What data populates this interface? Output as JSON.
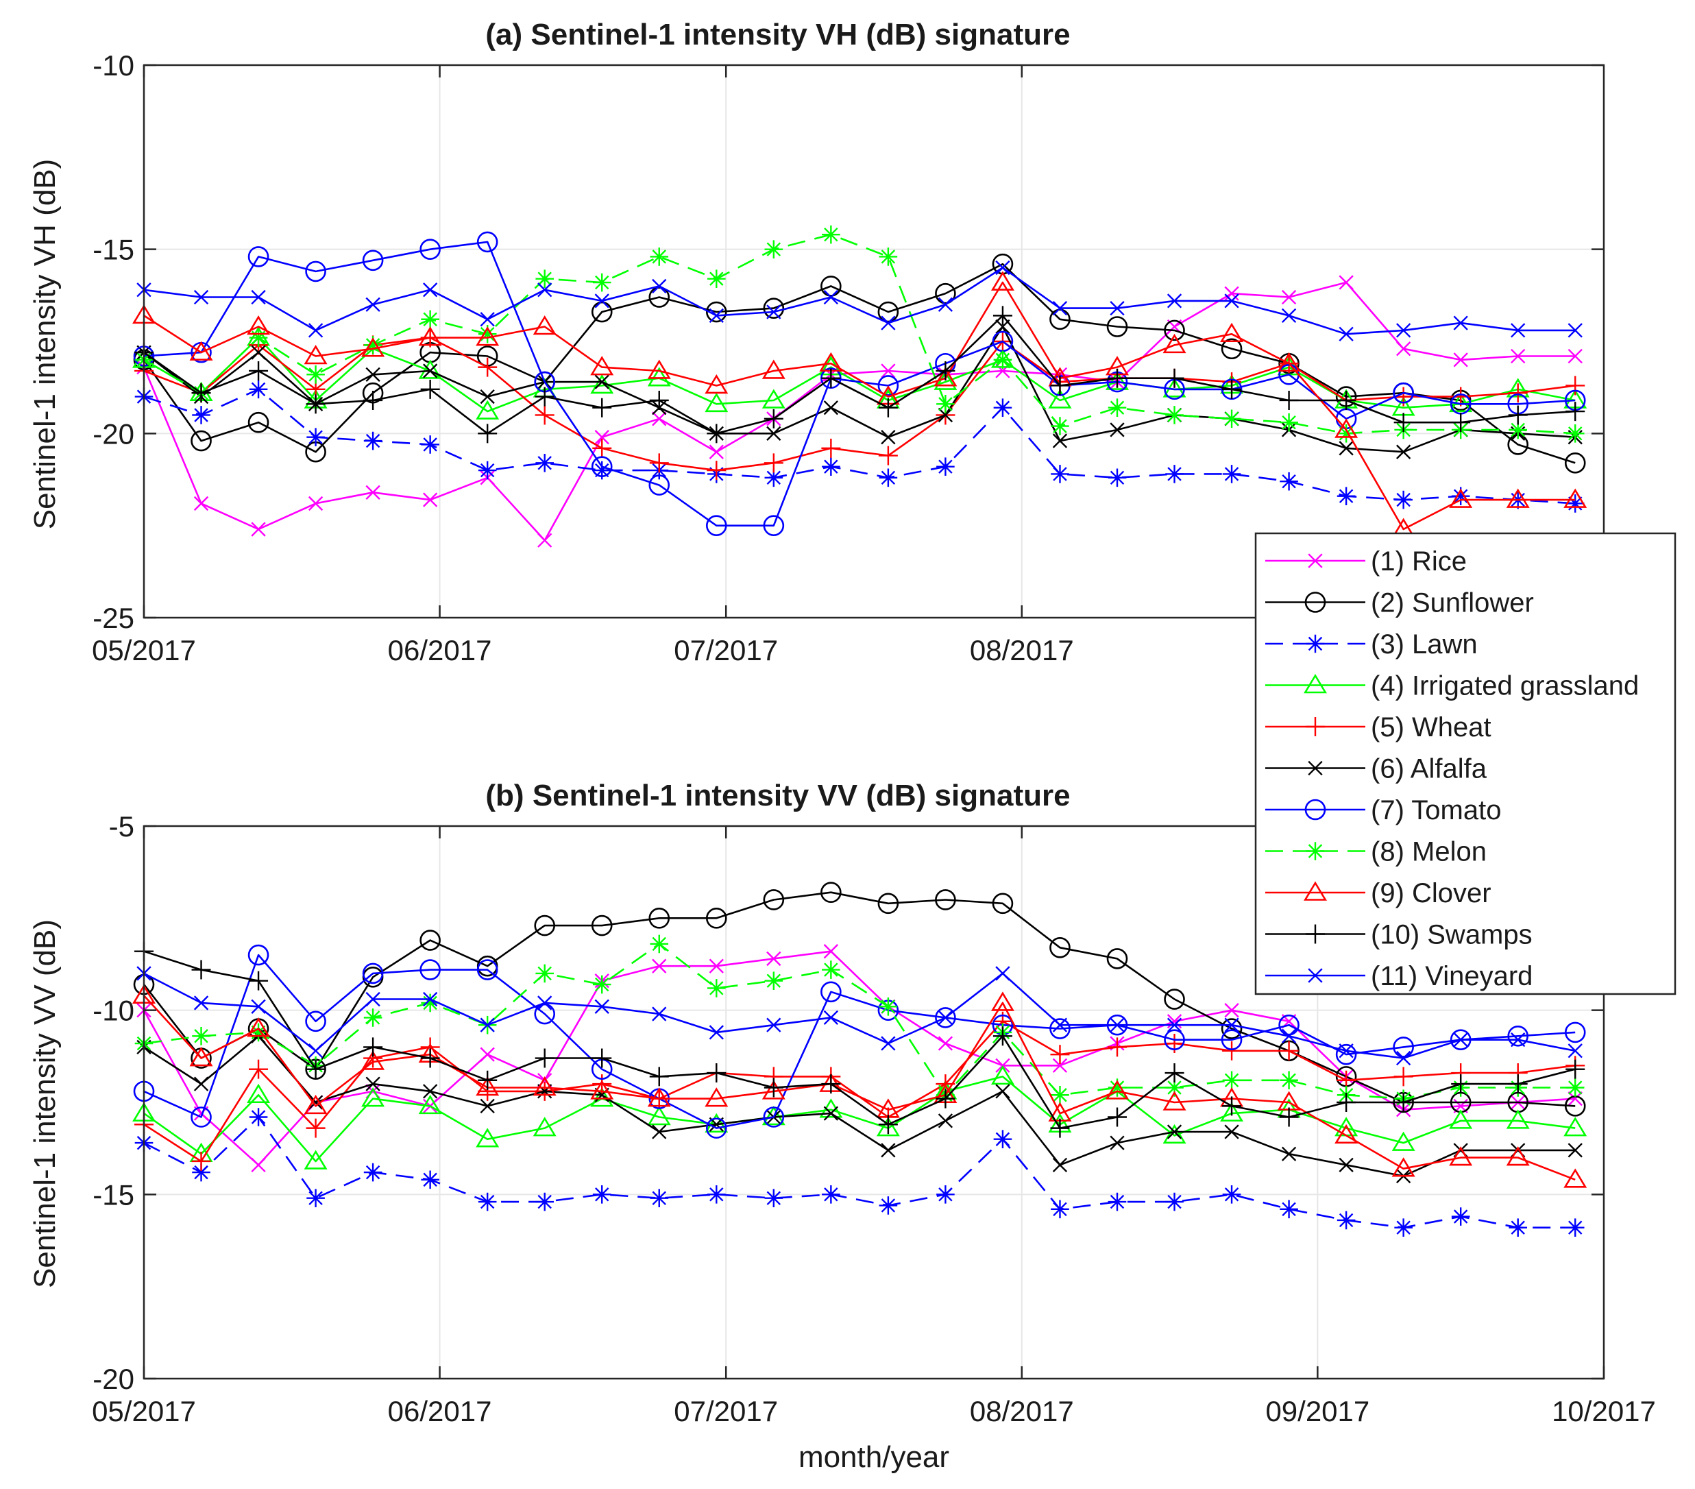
{
  "chart_data": [
    {
      "type": "line",
      "title": "(a) Sentinel-1 intensity VH (dB) signature",
      "xlabel": "",
      "ylabel": "Sentinel-1 intensity VH (dB)",
      "ylim": [
        -25,
        -10
      ],
      "yticks": [
        "-25",
        "-20",
        "-15",
        "-10"
      ],
      "xlim": [
        0,
        153
      ],
      "xticks": [
        {
          "value": 0,
          "label": "05/2017"
        },
        {
          "value": 31,
          "label": "06/2017"
        },
        {
          "value": 61,
          "label": "07/2017"
        },
        {
          "value": 92,
          "label": "08/2017"
        }
      ],
      "x": [
        0,
        6,
        12,
        18,
        24,
        30,
        36,
        42,
        48,
        54,
        60,
        66,
        72,
        78,
        84,
        90,
        96,
        102,
        108,
        114,
        120,
        126,
        132,
        138,
        144,
        150
      ],
      "series": [
        {
          "name": "(1) Rice",
          "values": [
            -18.2,
            -21.9,
            -22.6,
            -21.9,
            -21.6,
            -21.8,
            -21.2,
            -22.9,
            -20.1,
            -19.6,
            -20.5,
            -19.6,
            -18.4,
            -18.3,
            -18.4,
            -18.3,
            -18.4,
            -18.6,
            -17.1,
            -16.2,
            -16.3,
            -15.9,
            -17.7,
            -18.0,
            -17.9,
            -17.9
          ]
        },
        {
          "name": "(2) Sunflower",
          "values": [
            -18.0,
            -20.2,
            -19.7,
            -20.5,
            -18.9,
            -17.8,
            -17.9,
            -18.6,
            -16.7,
            -16.3,
            -16.7,
            -16.6,
            -16.0,
            -16.7,
            -16.2,
            -15.4,
            -16.9,
            -17.1,
            -17.2,
            -17.7,
            -18.1,
            -19.0,
            -18.9,
            -19.1,
            -20.3,
            -20.8
          ]
        },
        {
          "name": "(3) Lawn",
          "values": [
            -19.0,
            -19.5,
            -18.8,
            -20.1,
            -20.2,
            -20.3,
            -21.0,
            -20.8,
            -21.0,
            -21.0,
            -21.1,
            -21.2,
            -20.9,
            -21.2,
            -20.9,
            -19.3,
            -21.1,
            -21.2,
            -21.1,
            -21.1,
            -21.3,
            -21.7,
            -21.8,
            -21.7,
            -21.8,
            -21.9
          ]
        },
        {
          "name": "(4) Irrigated grassland",
          "values": [
            -18.0,
            -18.9,
            -17.4,
            -19.1,
            -17.7,
            -18.3,
            -19.4,
            -18.8,
            -18.7,
            -18.5,
            -19.2,
            -19.1,
            -18.2,
            -19.1,
            -18.6,
            -18.0,
            -19.1,
            -18.6,
            -18.8,
            -18.7,
            -18.2,
            -19.1,
            -19.3,
            -19.2,
            -18.8,
            -19.1
          ]
        },
        {
          "name": "(5) Wheat",
          "values": [
            -18.3,
            -18.9,
            -17.6,
            -18.8,
            -17.6,
            -17.4,
            -18.2,
            -19.5,
            -20.4,
            -20.8,
            -21.0,
            -20.8,
            -20.4,
            -20.6,
            -19.5,
            -17.5,
            -18.6,
            -18.5,
            -18.5,
            -18.6,
            -18.1,
            -19.1,
            -19.0,
            -19.0,
            -18.9,
            -18.7
          ]
        },
        {
          "name": "(6) Alfalfa",
          "values": [
            -17.8,
            -19.0,
            -17.8,
            -19.2,
            -18.4,
            -18.3,
            -19.0,
            -18.6,
            -18.6,
            -19.3,
            -20.0,
            -20.0,
            -19.3,
            -20.1,
            -19.5,
            -17.1,
            -20.2,
            -19.9,
            -19.5,
            -19.6,
            -19.9,
            -20.4,
            -20.5,
            -19.9,
            -20.0,
            -20.1
          ]
        },
        {
          "name": "(7) Tomato",
          "values": [
            -17.9,
            -17.8,
            -15.2,
            -15.6,
            -15.3,
            -15.0,
            -14.8,
            -18.6,
            -20.9,
            -21.4,
            -22.5,
            -22.5,
            -18.5,
            -18.7,
            -18.1,
            -17.5,
            -18.7,
            -18.6,
            -18.8,
            -18.8,
            -18.4,
            -19.6,
            -18.9,
            -19.2,
            -19.2,
            -19.1
          ]
        },
        {
          "name": "(8) Melon",
          "values": [
            -18.0,
            -18.9,
            -17.4,
            -18.4,
            -17.6,
            -16.9,
            -17.3,
            -15.8,
            -15.9,
            -15.2,
            -15.8,
            -15.0,
            -14.6,
            -15.2,
            -19.2,
            -18.0,
            -19.8,
            -19.3,
            -19.5,
            -19.6,
            -19.7,
            -20.0,
            -19.9,
            -19.9,
            -19.9,
            -20.0
          ]
        },
        {
          "name": "(9) Clover",
          "values": [
            -16.8,
            -17.8,
            -17.1,
            -17.9,
            -17.7,
            -17.4,
            -17.4,
            -17.1,
            -18.2,
            -18.3,
            -18.7,
            -18.3,
            -18.1,
            -19.0,
            -18.5,
            -15.9,
            -18.5,
            -18.2,
            -17.6,
            -17.3,
            -18.1,
            -19.9,
            -22.6,
            -21.8,
            -21.8,
            -21.8
          ]
        },
        {
          "name": "(10) Swamps",
          "values": [
            -17.8,
            -18.9,
            -18.3,
            -19.2,
            -19.1,
            -18.8,
            -20.0,
            -19.0,
            -19.3,
            -19.1,
            -20.0,
            -19.6,
            -18.5,
            -19.3,
            -18.3,
            -16.8,
            -18.7,
            -18.5,
            -18.5,
            -18.8,
            -19.1,
            -19.1,
            -19.7,
            -19.7,
            -19.5,
            -19.4
          ]
        },
        {
          "name": "(11) Vineyard",
          "values": [
            -16.1,
            -16.3,
            -16.3,
            -17.2,
            -16.5,
            -16.1,
            -16.9,
            -16.1,
            -16.4,
            -16.0,
            -16.8,
            -16.7,
            -16.3,
            -17.0,
            -16.5,
            -15.5,
            -16.6,
            -16.6,
            -16.4,
            -16.4,
            -16.8,
            -17.3,
            -17.2,
            -17.0,
            -17.2,
            -17.2
          ]
        }
      ]
    },
    {
      "type": "line",
      "title": "(b) Sentinel-1 intensity VV (dB) signature",
      "xlabel": "month/year",
      "ylabel": "Sentinel-1 intensity VV (dB)",
      "ylim": [
        -20,
        -5
      ],
      "yticks": [
        "-20",
        "-15",
        "-10",
        "-5"
      ],
      "xlim": [
        0,
        153
      ],
      "xticks": [
        {
          "value": 0,
          "label": "05/2017"
        },
        {
          "value": 31,
          "label": "06/2017"
        },
        {
          "value": 61,
          "label": "07/2017"
        },
        {
          "value": 92,
          "label": "08/2017"
        },
        {
          "value": 123,
          "label": "09/2017"
        },
        {
          "value": 153,
          "label": "10/2017"
        }
      ],
      "x": [
        0,
        6,
        12,
        18,
        24,
        30,
        36,
        42,
        48,
        54,
        60,
        66,
        72,
        78,
        84,
        90,
        96,
        102,
        108,
        114,
        120,
        126,
        132,
        138,
        144,
        150
      ],
      "series": [
        {
          "name": "(1) Rice",
          "values": [
            -10.0,
            -12.8,
            -14.2,
            -12.5,
            -12.2,
            -12.6,
            -11.2,
            -11.9,
            -9.2,
            -8.8,
            -8.8,
            -8.6,
            -8.4,
            -9.9,
            -10.9,
            -11.5,
            -11.5,
            -10.9,
            -10.3,
            -10.0,
            -10.3,
            -11.8,
            -12.7,
            -12.6,
            -12.5,
            -12.4
          ]
        },
        {
          "name": "(2) Sunflower",
          "values": [
            -9.3,
            -11.3,
            -10.5,
            -11.6,
            -9.1,
            -8.1,
            -8.8,
            -7.7,
            -7.7,
            -7.5,
            -7.5,
            -7.0,
            -6.8,
            -7.1,
            -7.0,
            -7.1,
            -8.3,
            -8.6,
            -9.7,
            -10.5,
            -11.1,
            -11.8,
            -12.5,
            -12.5,
            -12.5,
            -12.6
          ]
        },
        {
          "name": "(3) Lawn",
          "values": [
            -13.6,
            -14.4,
            -12.9,
            -15.1,
            -14.4,
            -14.6,
            -15.2,
            -15.2,
            -15.0,
            -15.1,
            -15.0,
            -15.1,
            -15.0,
            -15.3,
            -15.0,
            -13.5,
            -15.4,
            -15.2,
            -15.2,
            -15.0,
            -15.4,
            -15.7,
            -15.9,
            -15.6,
            -15.9,
            -15.9
          ]
        },
        {
          "name": "(4) Irrigated grassland",
          "values": [
            -12.8,
            -13.9,
            -12.3,
            -14.1,
            -12.4,
            -12.6,
            -13.5,
            -13.2,
            -12.4,
            -12.9,
            -13.1,
            -12.9,
            -12.7,
            -13.2,
            -12.2,
            -11.8,
            -13.1,
            -12.2,
            -13.4,
            -12.8,
            -12.7,
            -13.2,
            -13.6,
            -13.0,
            -13.0,
            -13.2
          ]
        },
        {
          "name": "(5) Wheat",
          "values": [
            -13.1,
            -14.1,
            -11.6,
            -13.2,
            -11.3,
            -11.0,
            -12.2,
            -12.2,
            -12.0,
            -12.4,
            -11.7,
            -11.8,
            -11.8,
            -12.9,
            -12.0,
            -10.3,
            -11.2,
            -11.0,
            -10.9,
            -11.1,
            -11.1,
            -11.9,
            -11.8,
            -11.7,
            -11.7,
            -11.5
          ]
        },
        {
          "name": "(6) Alfalfa",
          "values": [
            -11.0,
            -12.0,
            -10.7,
            -12.5,
            -12.0,
            -12.2,
            -12.6,
            -12.2,
            -12.3,
            -13.3,
            -13.1,
            -12.9,
            -12.8,
            -13.8,
            -13.0,
            -12.2,
            -14.2,
            -13.6,
            -13.3,
            -13.3,
            -13.9,
            -14.2,
            -14.5,
            -13.8,
            -13.8,
            -13.8
          ]
        },
        {
          "name": "(7) Tomato",
          "values": [
            -12.2,
            -12.9,
            -8.5,
            -10.3,
            -9.0,
            -8.9,
            -8.9,
            -10.1,
            -11.6,
            -12.4,
            -13.2,
            -12.9,
            -9.5,
            -10.0,
            -10.2,
            -10.4,
            -10.5,
            -10.4,
            -10.8,
            -10.8,
            -10.4,
            -11.2,
            -11.0,
            -10.8,
            -10.7,
            -10.6
          ]
        },
        {
          "name": "(8) Melon",
          "values": [
            -10.9,
            -10.7,
            -10.6,
            -11.5,
            -10.2,
            -9.8,
            -10.4,
            -9.0,
            -9.3,
            -8.2,
            -9.4,
            -9.2,
            -8.9,
            -9.9,
            -12.3,
            -10.6,
            -12.3,
            -12.1,
            -12.1,
            -11.9,
            -11.9,
            -12.3,
            -12.4,
            -12.1,
            -12.1,
            -12.1
          ]
        },
        {
          "name": "(9) Clover",
          "values": [
            -9.6,
            -11.3,
            -10.5,
            -12.6,
            -11.4,
            -11.2,
            -12.1,
            -12.1,
            -12.2,
            -12.4,
            -12.4,
            -12.2,
            -12.0,
            -12.7,
            -12.3,
            -9.8,
            -12.8,
            -12.2,
            -12.5,
            -12.4,
            -12.5,
            -13.4,
            -14.3,
            -14.0,
            -14.0,
            -14.6
          ]
        },
        {
          "name": "(10) Swamps",
          "values": [
            -8.4,
            -8.9,
            -9.2,
            -11.6,
            -11.0,
            -11.3,
            -11.9,
            -11.3,
            -11.3,
            -11.8,
            -11.7,
            -12.1,
            -12.0,
            -13.1,
            -12.4,
            -10.7,
            -13.2,
            -12.9,
            -11.7,
            -12.6,
            -12.9,
            -12.5,
            -12.5,
            -12.0,
            -12.0,
            -11.6
          ]
        },
        {
          "name": "(11) Vineyard",
          "values": [
            -9.0,
            -9.8,
            -9.9,
            -11.1,
            -9.7,
            -9.7,
            -10.4,
            -9.8,
            -9.9,
            -10.1,
            -10.6,
            -10.4,
            -10.2,
            -10.9,
            -10.2,
            -9.0,
            -10.4,
            -10.4,
            -10.4,
            -10.4,
            -10.7,
            -11.1,
            -11.3,
            -10.8,
            -10.8,
            -11.1
          ]
        }
      ]
    }
  ],
  "legend": {
    "position": "right",
    "entries": [
      {
        "label": "(1) Rice",
        "color": "#ff00ff",
        "marker": "x",
        "dash": "solid"
      },
      {
        "label": "(2) Sunflower",
        "color": "#000000",
        "marker": "o",
        "dash": "solid"
      },
      {
        "label": "(3) Lawn",
        "color": "#0000ff",
        "marker": "*",
        "dash": "dashed"
      },
      {
        "label": "(4) Irrigated grassland",
        "color": "#00ff00",
        "marker": "^",
        "dash": "solid"
      },
      {
        "label": "(5) Wheat",
        "color": "#ff0000",
        "marker": "+",
        "dash": "solid"
      },
      {
        "label": "(6) Alfalfa",
        "color": "#000000",
        "marker": "x",
        "dash": "solid"
      },
      {
        "label": "(7) Tomato",
        "color": "#0000ff",
        "marker": "o",
        "dash": "solid"
      },
      {
        "label": "(8) Melon",
        "color": "#00ff00",
        "marker": "*",
        "dash": "dashed"
      },
      {
        "label": "(9) Clover",
        "color": "#ff0000",
        "marker": "^",
        "dash": "solid"
      },
      {
        "label": "(10) Swamps",
        "color": "#000000",
        "marker": "+",
        "dash": "solid"
      },
      {
        "label": "(11) Vineyard",
        "color": "#0000ff",
        "marker": "x",
        "dash": "solid"
      }
    ]
  }
}
